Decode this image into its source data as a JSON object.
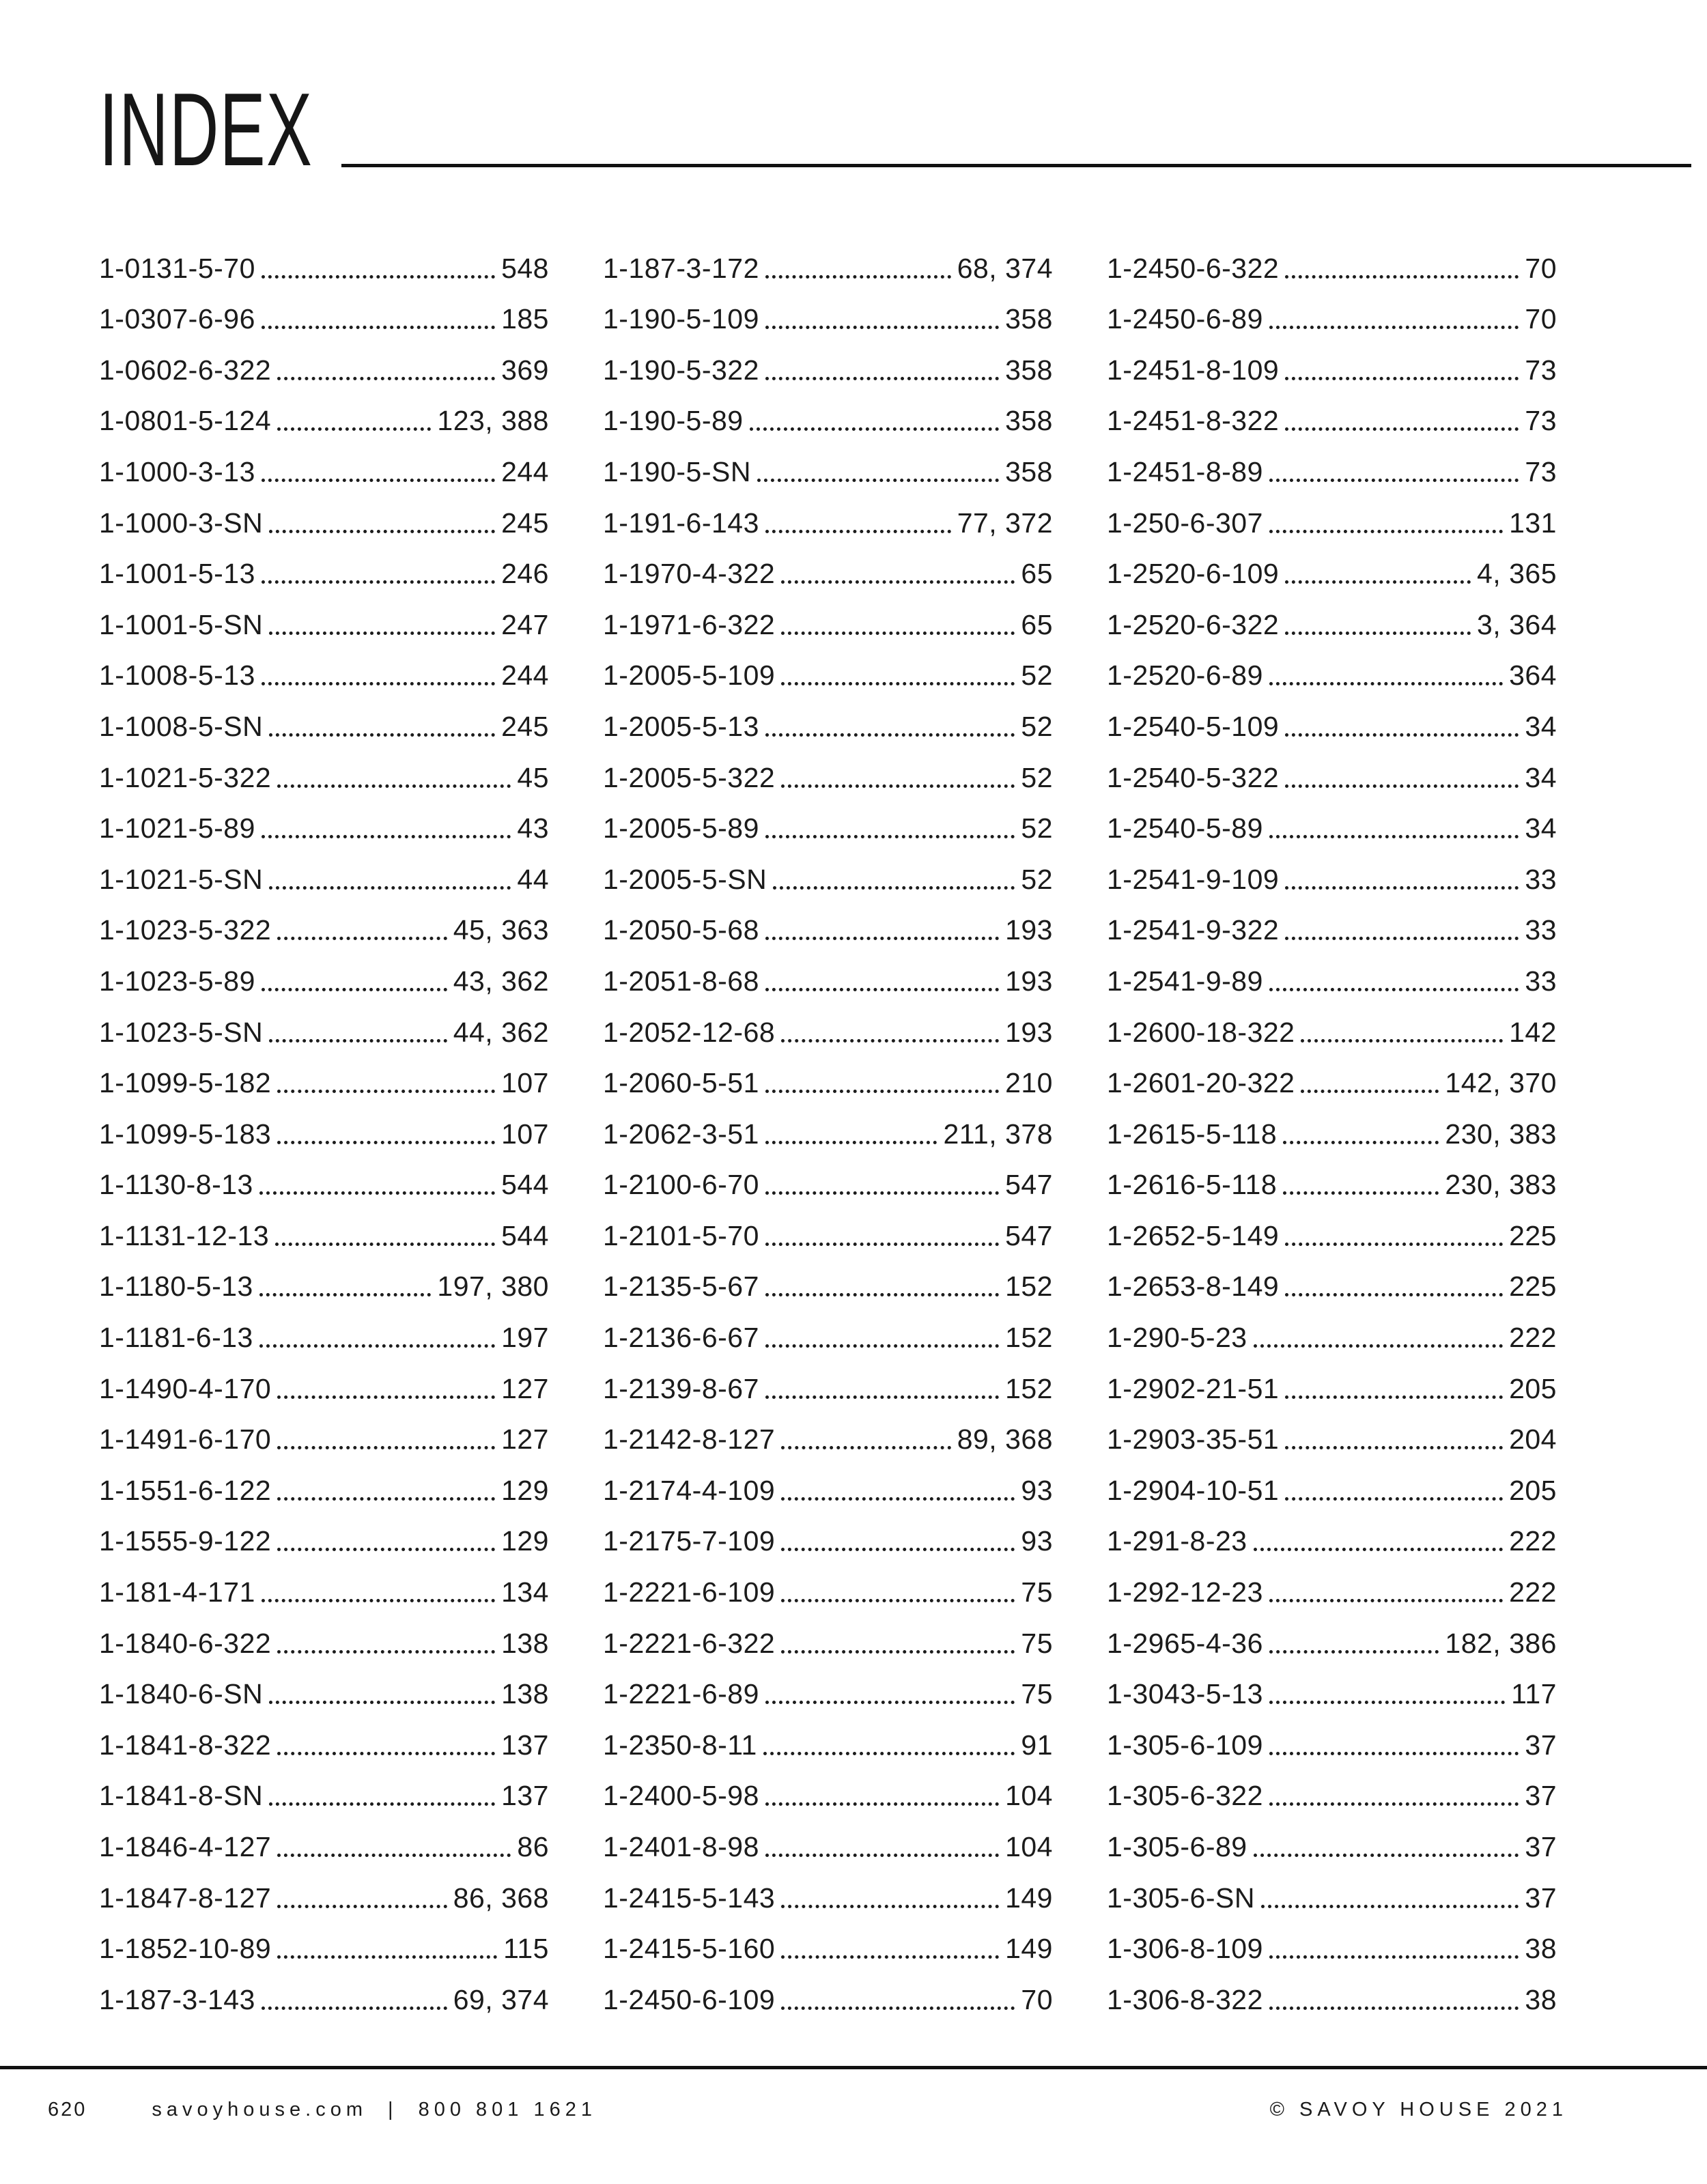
{
  "title": "INDEX",
  "colors": {
    "text": "#1b1b1b",
    "rule": "#111111",
    "background": "#ffffff"
  },
  "columns": [
    {
      "entries": [
        {
          "label": "1-0131-5-70",
          "page": "548"
        },
        {
          "label": "1-0307-6-96",
          "page": "185"
        },
        {
          "label": "1-0602-6-322",
          "page": "369"
        },
        {
          "label": "1-0801-5-124",
          "page": "123, 388"
        },
        {
          "label": "1-1000-3-13",
          "page": "244"
        },
        {
          "label": "1-1000-3-SN",
          "page": "245"
        },
        {
          "label": "1-1001-5-13",
          "page": "246"
        },
        {
          "label": "1-1001-5-SN",
          "page": "247"
        },
        {
          "label": "1-1008-5-13",
          "page": "244"
        },
        {
          "label": "1-1008-5-SN",
          "page": "245"
        },
        {
          "label": "1-1021-5-322",
          "page": "45"
        },
        {
          "label": "1-1021-5-89",
          "page": "43"
        },
        {
          "label": "1-1021-5-SN",
          "page": "44"
        },
        {
          "label": "1-1023-5-322",
          "page": "45, 363"
        },
        {
          "label": "1-1023-5-89",
          "page": "43, 362"
        },
        {
          "label": "1-1023-5-SN",
          "page": "44, 362"
        },
        {
          "label": "1-1099-5-182",
          "page": "107"
        },
        {
          "label": "1-1099-5-183",
          "page": "107"
        },
        {
          "label": "1-1130-8-13",
          "page": "544"
        },
        {
          "label": "1-1131-12-13",
          "page": "544"
        },
        {
          "label": "1-1180-5-13",
          "page": "197, 380"
        },
        {
          "label": "1-1181-6-13",
          "page": "197"
        },
        {
          "label": "1-1490-4-170",
          "page": "127"
        },
        {
          "label": "1-1491-6-170",
          "page": "127"
        },
        {
          "label": "1-1551-6-122",
          "page": "129"
        },
        {
          "label": "1-1555-9-122",
          "page": "129"
        },
        {
          "label": "1-181-4-171",
          "page": "134"
        },
        {
          "label": "1-1840-6-322",
          "page": "138"
        },
        {
          "label": "1-1840-6-SN",
          "page": "138"
        },
        {
          "label": "1-1841-8-322",
          "page": "137"
        },
        {
          "label": "1-1841-8-SN",
          "page": "137"
        },
        {
          "label": "1-1846-4-127",
          "page": "86"
        },
        {
          "label": "1-1847-8-127",
          "page": "86, 368"
        },
        {
          "label": "1-1852-10-89",
          "page": "115"
        },
        {
          "label": "1-187-3-143",
          "page": "69, 374"
        }
      ]
    },
    {
      "entries": [
        {
          "label": "1-187-3-172",
          "page": "68, 374"
        },
        {
          "label": "1-190-5-109",
          "page": "358"
        },
        {
          "label": "1-190-5-322",
          "page": "358"
        },
        {
          "label": "1-190-5-89",
          "page": "358"
        },
        {
          "label": "1-190-5-SN",
          "page": "358"
        },
        {
          "label": "1-191-6-143",
          "page": "77, 372"
        },
        {
          "label": "1-1970-4-322",
          "page": "65"
        },
        {
          "label": "1-1971-6-322",
          "page": "65"
        },
        {
          "label": "1-2005-5-109",
          "page": "52"
        },
        {
          "label": "1-2005-5-13",
          "page": "52"
        },
        {
          "label": "1-2005-5-322",
          "page": "52"
        },
        {
          "label": "1-2005-5-89",
          "page": "52"
        },
        {
          "label": "1-2005-5-SN",
          "page": "52"
        },
        {
          "label": "1-2050-5-68",
          "page": "193"
        },
        {
          "label": "1-2051-8-68",
          "page": "193"
        },
        {
          "label": "1-2052-12-68",
          "page": "193"
        },
        {
          "label": "1-2060-5-51",
          "page": "210"
        },
        {
          "label": "1-2062-3-51",
          "page": "211, 378"
        },
        {
          "label": "1-2100-6-70",
          "page": "547"
        },
        {
          "label": "1-2101-5-70",
          "page": "547"
        },
        {
          "label": "1-2135-5-67",
          "page": "152"
        },
        {
          "label": "1-2136-6-67",
          "page": "152"
        },
        {
          "label": "1-2139-8-67",
          "page": "152"
        },
        {
          "label": "1-2142-8-127",
          "page": "89, 368"
        },
        {
          "label": "1-2174-4-109",
          "page": "93"
        },
        {
          "label": "1-2175-7-109",
          "page": "93"
        },
        {
          "label": "1-2221-6-109",
          "page": "75"
        },
        {
          "label": "1-2221-6-322",
          "page": "75"
        },
        {
          "label": "1-2221-6-89",
          "page": "75"
        },
        {
          "label": "1-2350-8-11",
          "page": "91"
        },
        {
          "label": "1-2400-5-98",
          "page": "104"
        },
        {
          "label": "1-2401-8-98",
          "page": "104"
        },
        {
          "label": "1-2415-5-143",
          "page": "149"
        },
        {
          "label": "1-2415-5-160",
          "page": "149"
        },
        {
          "label": "1-2450-6-109",
          "page": "70"
        }
      ]
    },
    {
      "entries": [
        {
          "label": "1-2450-6-322",
          "page": "70"
        },
        {
          "label": "1-2450-6-89",
          "page": "70"
        },
        {
          "label": "1-2451-8-109",
          "page": "73"
        },
        {
          "label": "1-2451-8-322",
          "page": "73"
        },
        {
          "label": "1-2451-8-89",
          "page": "73"
        },
        {
          "label": "1-250-6-307",
          "page": "131"
        },
        {
          "label": "1-2520-6-109",
          "page": "4, 365"
        },
        {
          "label": "1-2520-6-322",
          "page": "3, 364"
        },
        {
          "label": "1-2520-6-89",
          "page": "364"
        },
        {
          "label": "1-2540-5-109",
          "page": "34"
        },
        {
          "label": "1-2540-5-322",
          "page": "34"
        },
        {
          "label": "1-2540-5-89",
          "page": "34"
        },
        {
          "label": "1-2541-9-109",
          "page": "33"
        },
        {
          "label": "1-2541-9-322",
          "page": "33"
        },
        {
          "label": "1-2541-9-89",
          "page": "33"
        },
        {
          "label": "1-2600-18-322",
          "page": "142"
        },
        {
          "label": "1-2601-20-322",
          "page": "142, 370"
        },
        {
          "label": "1-2615-5-118",
          "page": "230, 383"
        },
        {
          "label": "1-2616-5-118",
          "page": "230, 383"
        },
        {
          "label": "1-2652-5-149",
          "page": "225"
        },
        {
          "label": "1-2653-8-149",
          "page": "225"
        },
        {
          "label": "1-290-5-23",
          "page": "222"
        },
        {
          "label": "1-2902-21-51",
          "page": "205"
        },
        {
          "label": "1-2903-35-51",
          "page": "204"
        },
        {
          "label": "1-2904-10-51",
          "page": "205"
        },
        {
          "label": "1-291-8-23",
          "page": "222"
        },
        {
          "label": "1-292-12-23",
          "page": "222"
        },
        {
          "label": "1-2965-4-36",
          "page": "182, 386"
        },
        {
          "label": "1-3043-5-13",
          "page": "117"
        },
        {
          "label": "1-305-6-109",
          "page": "37"
        },
        {
          "label": "1-305-6-322",
          "page": "37"
        },
        {
          "label": "1-305-6-89",
          "page": "37"
        },
        {
          "label": "1-305-6-SN",
          "page": "37"
        },
        {
          "label": "1-306-8-109",
          "page": "38"
        },
        {
          "label": "1-306-8-322",
          "page": "38"
        }
      ]
    }
  ],
  "footer": {
    "page_number": "620",
    "website": "savoyhouse.com",
    "separator": "|",
    "phone": "800 801 1621",
    "copyright": "© SAVOY HOUSE 2021"
  }
}
